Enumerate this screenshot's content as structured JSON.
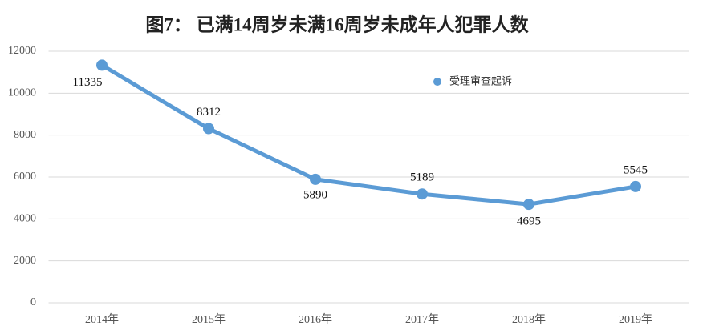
{
  "chart_data": {
    "type": "line",
    "title": "图7： 已满14周岁未满16周岁未成年人犯罪人数",
    "categories": [
      "2014年",
      "2015年",
      "2016年",
      "2017年",
      "2018年",
      "2019年"
    ],
    "series": [
      {
        "name": "受理审查起诉",
        "color": "#5b9bd5",
        "values": [
          11335,
          8312,
          5890,
          5189,
          4695,
          5545
        ]
      }
    ],
    "ylim": [
      0,
      12000
    ],
    "yticks": [
      0,
      2000,
      4000,
      6000,
      8000,
      10000,
      12000
    ],
    "grid": true
  }
}
